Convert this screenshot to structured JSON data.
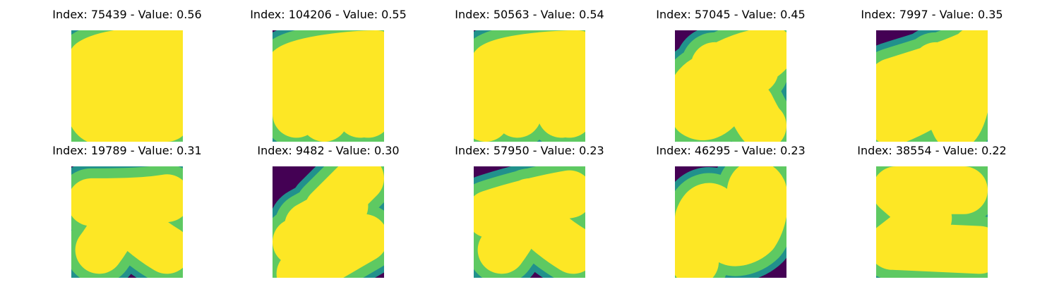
{
  "colors": {
    "background": "#440154",
    "stroke_core": "#fde725",
    "stroke_mid": "#5ec962",
    "stroke_edge": "#21918c"
  },
  "panels": [
    {
      "title": "Index: 75439 - Value: 0.56",
      "index": 75439,
      "value": 0.56
    },
    {
      "title": "Index: 104206 - Value: 0.55",
      "index": 104206,
      "value": 0.55
    },
    {
      "title": "Index: 50563 - Value: 0.54",
      "index": 50563,
      "value": 0.54
    },
    {
      "title": "Index: 57045 - Value: 0.45",
      "index": 57045,
      "value": 0.45
    },
    {
      "title": "Index: 7997 - Value: 0.35",
      "index": 7997,
      "value": 0.35
    },
    {
      "title": "Index: 19789 - Value: 0.31",
      "index": 19789,
      "value": 0.31
    },
    {
      "title": "Index: 9482 - Value: 0.30",
      "index": 9482,
      "value": 0.3
    },
    {
      "title": "Index: 57950 - Value: 0.23",
      "index": 57950,
      "value": 0.23
    },
    {
      "title": "Index: 46295 - Value: 0.23",
      "index": 46295,
      "value": 0.23
    },
    {
      "title": "Index: 38554 - Value: 0.22",
      "index": 38554,
      "value": 0.22
    }
  ]
}
